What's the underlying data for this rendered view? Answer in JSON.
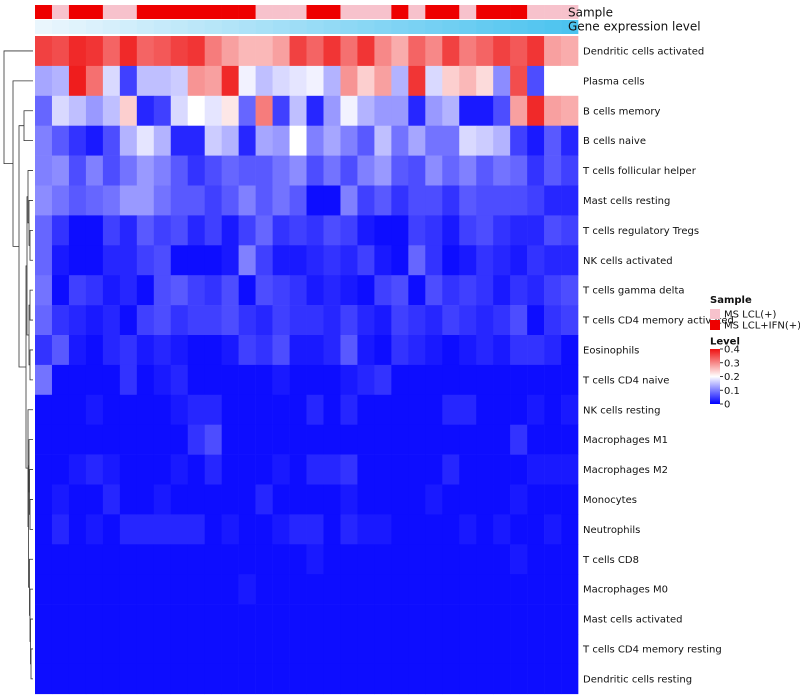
{
  "chart_data": {
    "type": "heatmap",
    "title": "",
    "annotation_rows": [
      "Sample",
      "Gene expression level"
    ],
    "rows": [
      "Dendritic cells activated",
      "Plasma cells",
      "B cells memory",
      "B cells naive",
      "T cells follicular helper",
      "Mast cells resting",
      "T cells regulatory  Tregs",
      "NK cells activated",
      "T cells gamma delta",
      "T cells CD4 memory activated",
      "Eosinophils",
      "T cells CD4 naive",
      "NK cells resting",
      "Macrophages M1",
      "Macrophages M2",
      "Monocytes",
      "Neutrophils",
      "T cells CD8",
      "Macrophages M0",
      "Mast cells activated",
      "T cells CD4 memory resting",
      "Dendritic cells resting"
    ],
    "sample_groups": [
      1,
      0,
      1,
      1,
      0,
      0,
      1,
      1,
      1,
      1,
      1,
      1,
      1,
      0,
      0,
      0,
      1,
      1,
      0,
      0,
      0,
      1,
      0,
      1,
      1,
      0,
      1,
      1,
      1,
      0,
      0,
      0
    ],
    "values": [
      [
        0.36,
        0.35,
        0.38,
        0.37,
        0.33,
        0.38,
        0.33,
        0.34,
        0.36,
        0.37,
        0.31,
        0.28,
        0.26,
        0.26,
        0.28,
        0.36,
        0.33,
        0.37,
        0.32,
        0.37,
        0.3,
        0.27,
        0.33,
        0.3,
        0.36,
        0.31,
        0.33,
        0.36,
        0.34,
        0.37,
        0.28,
        0.27
      ],
      [
        0.13,
        0.14,
        0.39,
        0.32,
        0.17,
        0.05,
        0.15,
        0.15,
        0.16,
        0.29,
        0.28,
        0.38,
        0.19,
        0.15,
        0.17,
        0.18,
        0.19,
        0.14,
        0.29,
        0.24,
        0.28,
        0.14,
        0.37,
        0.17,
        0.24,
        0.26,
        0.23,
        0.11,
        0.35,
        0.06,
        0.2,
        0.2
      ],
      [
        0.08,
        0.17,
        0.15,
        0.12,
        0.15,
        0.24,
        0.03,
        0.05,
        0.17,
        0.2,
        0.18,
        0.22,
        0.08,
        0.31,
        0.05,
        0.15,
        0.03,
        0.12,
        0.19,
        0.14,
        0.12,
        0.12,
        0.03,
        0.12,
        0.14,
        0.02,
        0.02,
        0.06,
        0.28,
        0.38,
        0.28,
        0.27
      ],
      [
        0.1,
        0.07,
        0.04,
        0.02,
        0.06,
        0.14,
        0.18,
        0.14,
        0.03,
        0.03,
        0.16,
        0.14,
        0.03,
        0.13,
        0.12,
        0.2,
        0.1,
        0.13,
        0.1,
        0.07,
        0.15,
        0.09,
        0.13,
        0.09,
        0.09,
        0.17,
        0.16,
        0.14,
        0.05,
        0.02,
        0.07,
        0.03
      ],
      [
        0.1,
        0.11,
        0.06,
        0.1,
        0.06,
        0.09,
        0.12,
        0.1,
        0.07,
        0.04,
        0.06,
        0.08,
        0.07,
        0.07,
        0.09,
        0.11,
        0.06,
        0.09,
        0.06,
        0.1,
        0.12,
        0.07,
        0.06,
        0.11,
        0.08,
        0.1,
        0.07,
        0.09,
        0.08,
        0.04,
        0.07,
        0.05
      ],
      [
        0.11,
        0.09,
        0.07,
        0.08,
        0.09,
        0.12,
        0.12,
        0.09,
        0.07,
        0.07,
        0.05,
        0.07,
        0.1,
        0.07,
        0.09,
        0.07,
        0.01,
        0.01,
        0.1,
        0.05,
        0.07,
        0.04,
        0.06,
        0.06,
        0.04,
        0.07,
        0.06,
        0.06,
        0.06,
        0.05,
        0.03,
        0.03
      ],
      [
        0.08,
        0.04,
        0.01,
        0.01,
        0.05,
        0.03,
        0.07,
        0.05,
        0.06,
        0.03,
        0.05,
        0.02,
        0.05,
        0.08,
        0.04,
        0.05,
        0.04,
        0.06,
        0.05,
        0.02,
        0.01,
        0.01,
        0.05,
        0.04,
        0.02,
        0.05,
        0.06,
        0.04,
        0.03,
        0.03,
        0.06,
        0.05
      ],
      [
        0.08,
        0.02,
        0.01,
        0.01,
        0.03,
        0.03,
        0.05,
        0.06,
        0.01,
        0.01,
        0.01,
        0.02,
        0.1,
        0.05,
        0.02,
        0.02,
        0.03,
        0.04,
        0.03,
        0.05,
        0.02,
        0.01,
        0.08,
        0.04,
        0.01,
        0.02,
        0.04,
        0.03,
        0.02,
        0.04,
        0.03,
        0.03
      ],
      [
        0.09,
        0.01,
        0.05,
        0.04,
        0.02,
        0.03,
        0.01,
        0.06,
        0.07,
        0.05,
        0.04,
        0.06,
        0.01,
        0.06,
        0.05,
        0.04,
        0.02,
        0.03,
        0.02,
        0.01,
        0.05,
        0.06,
        0.01,
        0.06,
        0.04,
        0.05,
        0.04,
        0.02,
        0.04,
        0.03,
        0.05,
        0.06
      ],
      [
        0.08,
        0.04,
        0.03,
        0.02,
        0.03,
        0.01,
        0.05,
        0.06,
        0.04,
        0.05,
        0.05,
        0.06,
        0.04,
        0.03,
        0.05,
        0.04,
        0.04,
        0.03,
        0.05,
        0.03,
        0.02,
        0.05,
        0.04,
        0.03,
        0.05,
        0.04,
        0.03,
        0.04,
        0.06,
        0.01,
        0.04,
        0.05
      ],
      [
        0.04,
        0.07,
        0.02,
        0.01,
        0.03,
        0.04,
        0.02,
        0.03,
        0.02,
        0.01,
        0.01,
        0.02,
        0.05,
        0.04,
        0.06,
        0.02,
        0.02,
        0.03,
        0.07,
        0.02,
        0.01,
        0.04,
        0.03,
        0.02,
        0.01,
        0.02,
        0.03,
        0.02,
        0.04,
        0.04,
        0.03,
        0.01
      ],
      [
        0.09,
        0.01,
        0.01,
        0.01,
        0.01,
        0.04,
        0.01,
        0.02,
        0.03,
        0.01,
        0.01,
        0.01,
        0.01,
        0.01,
        0.02,
        0.01,
        0.01,
        0.01,
        0.02,
        0.03,
        0.04,
        0.01,
        0.01,
        0.01,
        0.01,
        0.01,
        0.01,
        0.01,
        0.01,
        0.01,
        0.01,
        0.01
      ],
      [
        0.01,
        0.01,
        0.01,
        0.02,
        0.01,
        0.01,
        0.01,
        0.01,
        0.02,
        0.03,
        0.03,
        0.01,
        0.01,
        0.01,
        0.01,
        0.01,
        0.03,
        0.01,
        0.03,
        0.01,
        0.01,
        0.01,
        0.01,
        0.01,
        0.03,
        0.03,
        0.01,
        0.01,
        0.01,
        0.02,
        0.01,
        0.02
      ],
      [
        0.01,
        0.01,
        0.01,
        0.01,
        0.01,
        0.01,
        0.01,
        0.01,
        0.01,
        0.04,
        0.06,
        0.01,
        0.01,
        0.01,
        0.01,
        0.01,
        0.01,
        0.01,
        0.01,
        0.01,
        0.01,
        0.01,
        0.01,
        0.01,
        0.01,
        0.01,
        0.01,
        0.01,
        0.04,
        0.01,
        0.01,
        0.01
      ],
      [
        0.01,
        0.01,
        0.02,
        0.03,
        0.02,
        0.01,
        0.01,
        0.01,
        0.02,
        0.01,
        0.03,
        0.01,
        0.01,
        0.01,
        0.02,
        0.01,
        0.03,
        0.03,
        0.04,
        0.01,
        0.01,
        0.01,
        0.01,
        0.01,
        0.03,
        0.01,
        0.01,
        0.01,
        0.01,
        0.02,
        0.02,
        0.02
      ],
      [
        0.01,
        0.02,
        0.01,
        0.01,
        0.03,
        0.01,
        0.01,
        0.02,
        0.01,
        0.01,
        0.01,
        0.01,
        0.01,
        0.03,
        0.01,
        0.01,
        0.01,
        0.01,
        0.02,
        0.01,
        0.01,
        0.01,
        0.01,
        0.02,
        0.01,
        0.01,
        0.01,
        0.01,
        0.02,
        0.01,
        0.01,
        0.01
      ],
      [
        0.01,
        0.03,
        0.01,
        0.02,
        0.01,
        0.03,
        0.03,
        0.03,
        0.03,
        0.03,
        0.01,
        0.02,
        0.01,
        0.01,
        0.02,
        0.03,
        0.03,
        0.01,
        0.03,
        0.02,
        0.02,
        0.01,
        0.01,
        0.01,
        0.01,
        0.02,
        0.01,
        0.02,
        0.01,
        0.01,
        0.02,
        0.01
      ],
      [
        0.01,
        0.01,
        0.01,
        0.01,
        0.01,
        0.01,
        0.01,
        0.01,
        0.01,
        0.01,
        0.01,
        0.01,
        0.01,
        0.01,
        0.01,
        0.01,
        0.02,
        0.01,
        0.01,
        0.01,
        0.01,
        0.01,
        0.01,
        0.01,
        0.01,
        0.01,
        0.01,
        0.01,
        0.02,
        0.01,
        0.01,
        0.01
      ],
      [
        0.01,
        0.01,
        0.01,
        0.01,
        0.01,
        0.01,
        0.01,
        0.01,
        0.01,
        0.01,
        0.01,
        0.01,
        0.02,
        0.01,
        0.01,
        0.01,
        0.01,
        0.01,
        0.01,
        0.01,
        0.01,
        0.01,
        0.01,
        0.01,
        0.01,
        0.01,
        0.01,
        0.01,
        0.01,
        0.01,
        0.01,
        0.01
      ],
      [
        0.01,
        0.01,
        0.01,
        0.01,
        0.01,
        0.01,
        0.01,
        0.01,
        0.01,
        0.01,
        0.01,
        0.01,
        0.01,
        0.01,
        0.01,
        0.01,
        0.01,
        0.01,
        0.01,
        0.01,
        0.01,
        0.01,
        0.01,
        0.01,
        0.01,
        0.01,
        0.01,
        0.01,
        0.01,
        0.01,
        0.01,
        0.01
      ],
      [
        0.01,
        0.01,
        0.01,
        0.01,
        0.01,
        0.01,
        0.01,
        0.01,
        0.01,
        0.01,
        0.01,
        0.01,
        0.01,
        0.01,
        0.01,
        0.01,
        0.01,
        0.01,
        0.01,
        0.01,
        0.01,
        0.01,
        0.01,
        0.01,
        0.01,
        0.01,
        0.01,
        0.01,
        0.01,
        0.01,
        0.01,
        0.01
      ],
      [
        0.01,
        0.01,
        0.01,
        0.01,
        0.01,
        0.01,
        0.01,
        0.01,
        0.01,
        0.01,
        0.01,
        0.01,
        0.01,
        0.01,
        0.01,
        0.01,
        0.01,
        0.01,
        0.01,
        0.01,
        0.01,
        0.01,
        0.01,
        0.01,
        0.01,
        0.01,
        0.01,
        0.01,
        0.01,
        0.01,
        0.01,
        0.01
      ]
    ],
    "expression_gradient": {
      "from": "#eaf6fd",
      "to": "#4cc3ef"
    },
    "legend": {
      "sample": {
        "title": "Sample",
        "entries": [
          {
            "label": "MS LCL(+)",
            "color": "#f7c2cc"
          },
          {
            "label": "MS LCL+IFN(+)",
            "color": "#ee0000"
          }
        ]
      },
      "level": {
        "title": "Level",
        "ticks": [
          {
            "label": "0.4",
            "value": 0.4
          },
          {
            "label": "0.3",
            "value": 0.3
          },
          {
            "label": "0.2",
            "value": 0.2
          },
          {
            "label": "0.1",
            "value": 0.1
          },
          {
            "label": "0",
            "value": 0
          }
        ],
        "range": [
          0,
          0.4
        ],
        "colors": {
          "low": "#0000ff",
          "mid": "#ffffff",
          "high": "#ee1111"
        }
      }
    }
  }
}
